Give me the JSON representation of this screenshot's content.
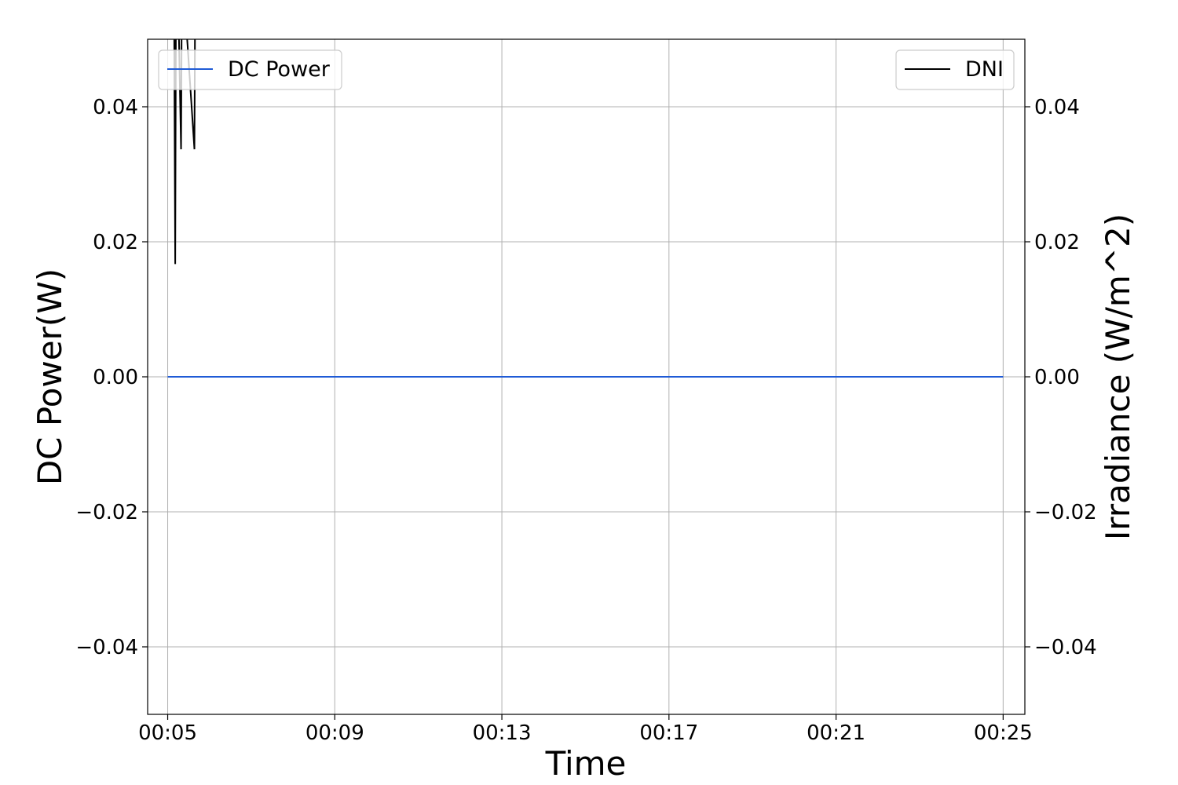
{
  "chart_data": {
    "type": "line",
    "title": "",
    "xlabel": "Time",
    "ylabel_left": "DC Power(W)",
    "ylabel_right": "Irradiance (W/m^2)",
    "xlim_minutes": [
      4.52,
      25.52
    ],
    "ylim_left": [
      -0.05,
      0.05
    ],
    "ylim_right": [
      -0.05,
      0.05
    ],
    "grid": true,
    "x_ticks": [
      {
        "value": 5,
        "label": "00:05"
      },
      {
        "value": 9,
        "label": "00:09"
      },
      {
        "value": 13,
        "label": "00:13"
      },
      {
        "value": 17,
        "label": "00:17"
      },
      {
        "value": 21,
        "label": "00:21"
      },
      {
        "value": 25,
        "label": "00:25"
      }
    ],
    "y_ticks_left": [
      {
        "value": 0.04,
        "label": "0.04"
      },
      {
        "value": 0.02,
        "label": "0.02"
      },
      {
        "value": 0.0,
        "label": "0.00"
      },
      {
        "value": -0.02,
        "label": "−0.02"
      },
      {
        "value": -0.04,
        "label": "−0.04"
      }
    ],
    "y_ticks_right": [
      {
        "value": 0.04,
        "label": "0.04"
      },
      {
        "value": 0.02,
        "label": "0.02"
      },
      {
        "value": 0.0,
        "label": "0.00"
      },
      {
        "value": -0.02,
        "label": "−0.02"
      },
      {
        "value": -0.04,
        "label": "−0.04"
      }
    ],
    "series": [
      {
        "name": "DC Power",
        "axis": "left",
        "color": "#1f5bd6",
        "x": [
          5,
          25
        ],
        "y": [
          0,
          0
        ]
      },
      {
        "name": "DNI",
        "axis": "right",
        "color": "#000000",
        "x": [
          5.15,
          5.18,
          5.2,
          5.22,
          5.24,
          5.32,
          5.34,
          5.36,
          5.64,
          5.66,
          5.68
        ],
        "y": [
          0.06,
          0.0167,
          0.06,
          0.06,
          0.06,
          0.0337,
          0.06,
          0.06,
          0.0337,
          0.06,
          0.06
        ]
      }
    ],
    "legend_left": {
      "position": "upper-left",
      "label": "DC Power",
      "color": "#1f5bd6"
    },
    "legend_right": {
      "position": "upper-right",
      "label": "DNI",
      "color": "#000000"
    }
  }
}
